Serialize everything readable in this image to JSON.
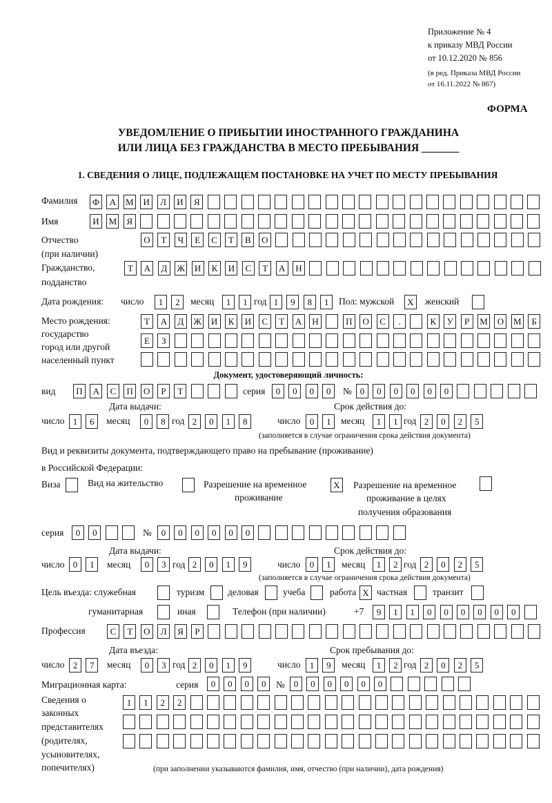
{
  "header": {
    "appendix": "Приложение № 4",
    "order": "к приказу МВД России",
    "order_date": "от 10.12.2020 № 856",
    "edition": "(в ред. Приказа МВД России",
    "edition_date": "от 16.11.2022 № 867)",
    "form_label": "ФОРМА"
  },
  "title": {
    "line1": "УВЕДОМЛЕНИЕ О ПРИБЫТИИ ИНОСТРАННОГО ГРАЖДАНИНА",
    "line2": "ИЛИ ЛИЦА БЕЗ ГРАЖДАНСТВА В МЕСТО ПРЕБЫВАНИЯ _______"
  },
  "section1": "1. СВЕДЕНИЯ О ЛИЦЕ, ПОДЛЕЖАЩЕМ ПОСТАНОВКЕ НА УЧЕТ ПО МЕСТУ ПРЕБЫВАНИЯ",
  "labels": {
    "surname": "Фамилия",
    "name": "Имя",
    "patronymic": "Отчество",
    "patronymic2": "(при наличии)",
    "citizenship": "Гражданство,",
    "citizenship2": "подданство",
    "birth_date": "Дата рождения:",
    "day": "число",
    "month": "месяц",
    "year": "год",
    "sex": "Пол: мужской",
    "female": "женский",
    "birthplace": [
      "Место рождения:",
      "государство",
      "город или другой",
      "населенный пункт"
    ],
    "id_doc": "Документ, удостоверяющий личность:",
    "kind": "вид",
    "series": "серия",
    "number": "№",
    "issue_date": "Дата выдачи:",
    "valid_until": "Срок действия до:",
    "validity_note": "(заполняется в случае ограничения срока действия документа)",
    "right_doc1": "Вид и реквизиты документа, подтверждающего право на пребывание (проживание)",
    "right_doc2": "в Российской Федерации:",
    "visa": "Виза",
    "residence": "Вид на жительство",
    "trp": [
      "Разрешение на временное",
      "проживание"
    ],
    "trp_edu": [
      "Разрешение на временное",
      "проживание в целях",
      "получения образования"
    ],
    "purpose": "Цель въезда: служебная",
    "tourism": "туризм",
    "business": "деловая",
    "study": "учеба",
    "work": "работа",
    "private": "частная",
    "transit": "транзит",
    "humanitarian": "гуманитарная",
    "other": "иная",
    "phone": "Телефон (при наличии)",
    "phone_prefix": "+7",
    "profession": "Профессия",
    "entry_date": "Дата въезда:",
    "stay_until": "Срок пребывания до:",
    "migration_card": "Миграционная карта:",
    "reps": [
      "Сведения о",
      "законных",
      "представителях",
      "(родителях,",
      "усыновителях,",
      "попечителях)"
    ],
    "reps_note": "(при заполнении указываются фамилия, имя, отчество (при наличии), дата рождения)"
  },
  "values": {
    "surname": "ФАМИЛИЯ",
    "name": "ИМЯ",
    "patronymic": "ОТЧЕСТВО",
    "citizenship": "ТАДЖИКИСТАН",
    "birth_day": "12",
    "birth_month": "11",
    "birth_year": "1981",
    "sex_male": "Х",
    "sex_female": "",
    "birthplace1": "ТАДЖИКИСТАН ПОС. КУРМОМБ",
    "birthplace2": "ЕЗ",
    "birthplace3": "",
    "id_kind": "ПАСПОРТ",
    "id_series": "0000",
    "id_number": "000000",
    "id_issue_day": "16",
    "id_issue_month": "08",
    "id_issue_year": "2018",
    "id_valid_day": "01",
    "id_valid_month": "11",
    "id_valid_year": "2025",
    "visa": "",
    "residence": "",
    "trp": "Х",
    "trp_edu": "",
    "rd_series": "00",
    "rd_number": "000000",
    "rd_issue_day": "01",
    "rd_issue_month": "03",
    "rd_issue_year": "2019",
    "rd_valid_day": "01",
    "rd_valid_month": "12",
    "rd_valid_year": "2025",
    "p_service": "",
    "p_tourism": "",
    "p_business": "",
    "p_study": "",
    "p_work": "Х",
    "p_private": "",
    "p_transit": "",
    "p_humanitarian": "",
    "p_other": "",
    "phone": "911000000",
    "profession": "СТОЛЯР",
    "entry_day": "27",
    "entry_month": "03",
    "entry_year": "2019",
    "stay_day": "19",
    "stay_month": "12",
    "stay_year": "2025",
    "mc_series": "0000",
    "mc_number": "000000",
    "reps1": "1122",
    "reps2": "",
    "reps3": ""
  }
}
